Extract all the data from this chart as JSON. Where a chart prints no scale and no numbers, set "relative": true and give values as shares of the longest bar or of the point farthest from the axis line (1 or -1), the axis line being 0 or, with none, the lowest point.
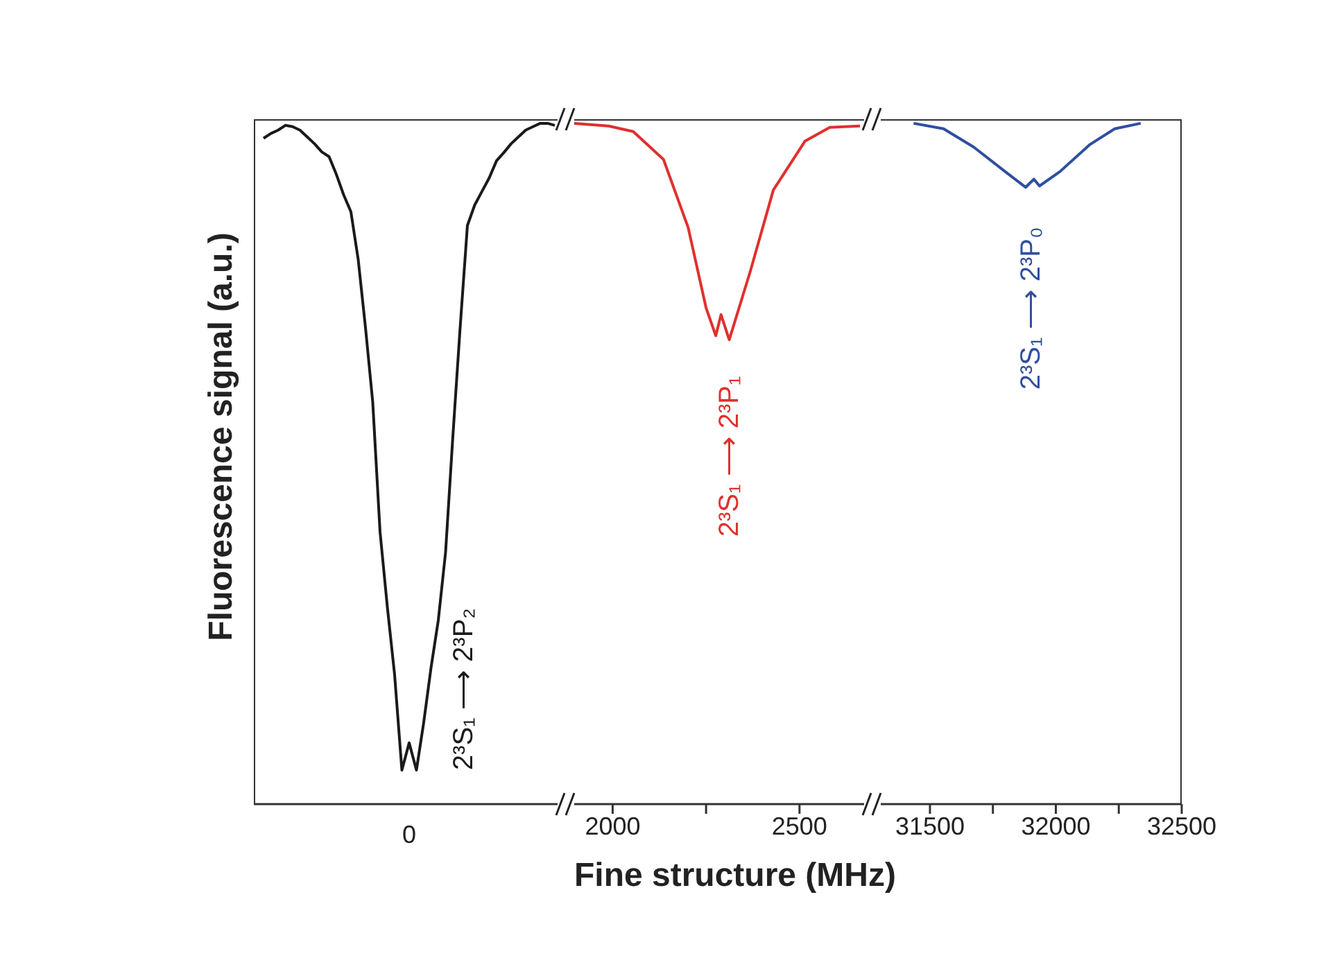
{
  "chart_data": [
    {
      "type": "line",
      "ylabel": "Fluorescence signal (a.u.)",
      "relative": true,
      "annotations": [
        "0",
        "2³S₁ ⟶ 2³P₂"
      ],
      "categories": [
        null,
        null,
        null,
        null,
        null,
        null,
        null,
        null,
        null,
        null,
        null,
        null,
        null,
        null,
        null,
        null,
        null,
        null,
        null,
        null,
        null,
        null,
        null,
        null,
        null,
        null,
        null,
        null,
        null,
        null,
        null,
        null,
        null,
        null,
        null,
        null,
        null,
        null,
        null,
        null,
        null
      ],
      "series": [
        {
          "color": "#1a1a1a",
          "values": [
            0.978,
            0.985,
            0.99,
            0.997,
            0.995,
            0.99,
            0.98,
            0.97,
            0.958,
            0.951,
            0.925,
            0.895,
            0.87,
            0.8,
            0.7,
            0.59,
            0.4,
            0.29,
            0.19,
            0.05,
            0.09,
            0.05,
            0.12,
            0.2,
            0.27,
            0.37,
            0.54,
            0.7,
            0.85,
            0.88,
            0.9,
            0.92,
            0.945,
            0.957,
            0.97,
            0.98,
            0.99,
            0.995,
            1.0,
            1.0,
            0.997
          ]
        }
      ]
    },
    {
      "type": "line",
      "xlabel": "Fine structure (MHz)",
      "relative": true,
      "xlim": [
        1886,
        2684
      ],
      "xticks": [
        2000,
        {
          "value": 2250,
          "label": null
        },
        2500
      ],
      "tick_labels": "x",
      "annotations": [
        "2³S₁ ⟶ 2³P₁"
      ],
      "x": [
        1897,
        1989,
        2055,
        2136,
        2202,
        2250,
        2276,
        2290,
        2312,
        2368,
        2430,
        2515,
        2581,
        2662
      ],
      "series": [
        {
          "color": "#e0302e",
          "values": [
            1.0,
            0.996,
            0.988,
            0.947,
            0.847,
            0.729,
            0.688,
            0.719,
            0.682,
            0.782,
            0.902,
            0.974,
            0.994,
            0.996
          ]
        }
      ]
    },
    {
      "type": "line",
      "relative": true,
      "xlim": [
        31288,
        32500
      ],
      "xticks": [
        31500,
        {
          "value": 31750,
          "label": null
        },
        32000,
        {
          "value": 32250,
          "label": null
        },
        32500
      ],
      "tick_labels": "x",
      "annotations": [
        "2³S₁ ⟶ 2³P₀"
      ],
      "x": [
        31435,
        31554,
        31674,
        31799,
        31880,
        31913,
        31935,
        32016,
        32136,
        32234,
        32337
      ],
      "series": [
        {
          "color": "#2f4f9f",
          "values": [
            1.0,
            0.992,
            0.965,
            0.929,
            0.906,
            0.918,
            0.908,
            0.929,
            0.969,
            0.992,
            1.0
          ]
        }
      ]
    }
  ]
}
